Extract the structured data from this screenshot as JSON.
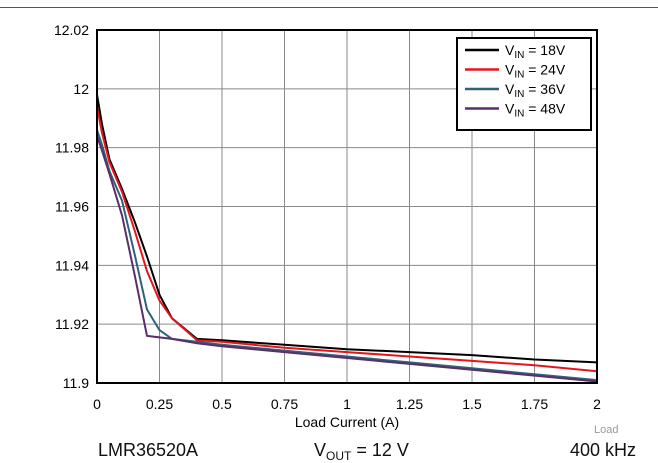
{
  "chart_data": {
    "type": "line",
    "title": "",
    "xlabel": "Load Current (A)",
    "ylabel": "",
    "xlim": [
      0,
      2
    ],
    "ylim": [
      11.9,
      12.02
    ],
    "grid": true,
    "legend_position": "top-right",
    "x_ticks": [
      0,
      0.25,
      0.5,
      0.75,
      1,
      1.25,
      1.5,
      1.75,
      2
    ],
    "x_tick_labels": [
      "0",
      "0.25",
      "0.5",
      "0.75",
      "1",
      "1.25",
      "1.5",
      "1.75",
      "2"
    ],
    "y_ticks": [
      11.9,
      11.92,
      11.94,
      11.96,
      11.98,
      12,
      12.02
    ],
    "y_tick_labels": [
      "11.9",
      "11.92",
      "11.94",
      "11.96",
      "11.98",
      "12",
      "12.02"
    ],
    "series": [
      {
        "name_main": "V",
        "name_sub": "IN",
        "name_rest": " = 18V",
        "color": "#000000",
        "x": [
          0,
          0.02,
          0.05,
          0.1,
          0.15,
          0.2,
          0.25,
          0.3,
          0.4,
          0.5,
          0.75,
          1,
          1.25,
          1.5,
          1.75,
          2
        ],
        "y": [
          11.998,
          11.988,
          11.976,
          11.966,
          11.955,
          11.943,
          11.93,
          11.922,
          11.915,
          11.9145,
          11.913,
          11.9115,
          11.9105,
          11.9095,
          11.908,
          11.907
        ]
      },
      {
        "name_main": "V",
        "name_sub": "IN",
        "name_rest": " = 24V",
        "color": "#e8141b",
        "x": [
          0,
          0.02,
          0.05,
          0.1,
          0.15,
          0.2,
          0.25,
          0.3,
          0.4,
          0.5,
          0.75,
          1,
          1.25,
          1.5,
          1.75,
          2
        ],
        "y": [
          11.994,
          11.985,
          11.975,
          11.965,
          11.952,
          11.938,
          11.928,
          11.922,
          11.9145,
          11.914,
          11.912,
          11.9105,
          11.909,
          11.9075,
          11.906,
          11.904
        ]
      },
      {
        "name_main": "V",
        "name_sub": "IN",
        "name_rest": " = 36V",
        "color": "#2d6377",
        "x": [
          0,
          0.02,
          0.05,
          0.1,
          0.15,
          0.2,
          0.25,
          0.3,
          0.4,
          0.5,
          0.75,
          1,
          1.25,
          1.5,
          1.75,
          2
        ],
        "y": [
          11.986,
          11.981,
          11.972,
          11.962,
          11.944,
          11.925,
          11.918,
          11.915,
          11.914,
          11.913,
          11.911,
          11.909,
          11.907,
          11.905,
          11.903,
          11.901
        ]
      },
      {
        "name_main": "V",
        "name_sub": "IN",
        "name_rest": " = 48V",
        "color": "#5b2e6a",
        "x": [
          0,
          0.02,
          0.05,
          0.1,
          0.15,
          0.2,
          0.25,
          0.3,
          0.4,
          0.5,
          0.75,
          1,
          1.25,
          1.5,
          1.75,
          2
        ],
        "y": [
          11.984,
          11.979,
          11.971,
          11.957,
          11.937,
          11.916,
          11.9155,
          11.915,
          11.9135,
          11.9125,
          11.9105,
          11.9085,
          11.9065,
          11.9045,
          11.9025,
          11.9005
        ]
      }
    ]
  },
  "caption": {
    "device": "LMR36520A",
    "vout_main": "V",
    "vout_sub": "OUT",
    "vout_rest": " = 12 V",
    "freq": "400 kHz"
  },
  "note": "Load"
}
